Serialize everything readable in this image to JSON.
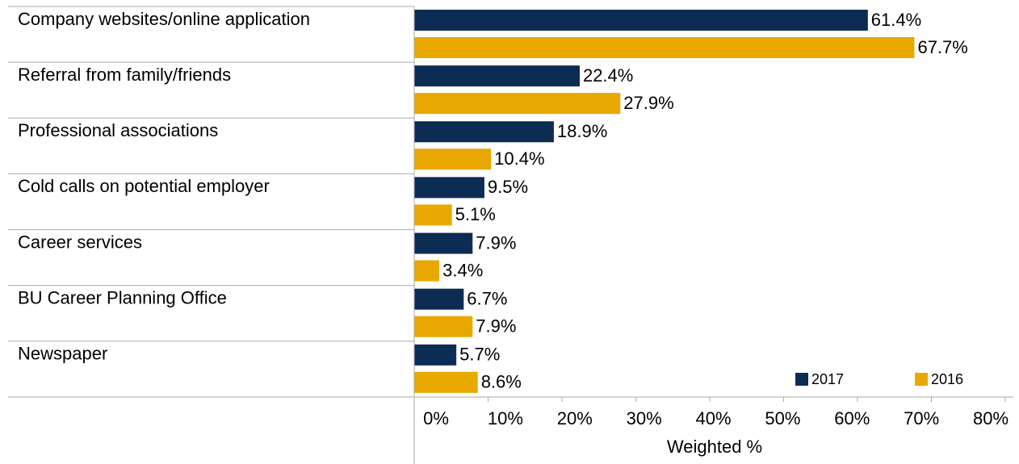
{
  "chart_data": {
    "type": "bar",
    "orientation": "horizontal",
    "categories": [
      "Company websites/online application",
      "Referral from family/friends",
      "Professional associations",
      "Cold calls on potential employer",
      "Career services",
      "BU Career Planning Office",
      "Newspaper"
    ],
    "series": [
      {
        "name": "2017",
        "color": "#0d2c54",
        "values": [
          61.4,
          22.4,
          18.9,
          9.5,
          7.9,
          6.7,
          5.7
        ],
        "value_labels": [
          "61.4%",
          "22.4%",
          "18.9%",
          "9.5%",
          "7.9%",
          "6.7%",
          "5.7%"
        ]
      },
      {
        "name": "2016",
        "color": "#e8a800",
        "values": [
          67.7,
          27.9,
          10.4,
          5.1,
          3.4,
          7.9,
          8.6
        ],
        "value_labels": [
          "67.7%",
          "27.9%",
          "10.4%",
          "5.1%",
          "3.4%",
          "7.9%",
          "8.6%"
        ]
      }
    ],
    "xlabel": "Weighted %",
    "xlim": [
      0,
      80
    ],
    "xticks": [
      {
        "value": 0,
        "label": "0%"
      },
      {
        "value": 10,
        "label": "10%"
      },
      {
        "value": 20,
        "label": "20%"
      },
      {
        "value": 30,
        "label": "30%"
      },
      {
        "value": 40,
        "label": "40%"
      },
      {
        "value": 50,
        "label": "50%"
      },
      {
        "value": 60,
        "label": "60%"
      },
      {
        "value": 70,
        "label": "70%"
      },
      {
        "value": 80,
        "label": "80%"
      }
    ],
    "legend": "lower right"
  }
}
